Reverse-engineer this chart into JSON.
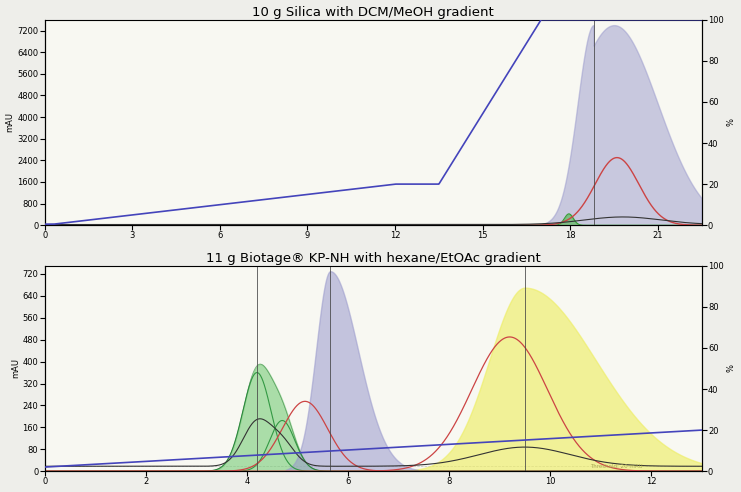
{
  "top_title": "10 g Silica with DCM/MeOH gradient",
  "bottom_title": "11 g Biotage® KP-NH with hexane/EtOAc gradient",
  "top": {
    "xlim": [
      0,
      22.5
    ],
    "ylim_left": [
      0,
      7600
    ],
    "ylim_right": [
      0,
      100
    ],
    "yticks_left": [
      0,
      800,
      1600,
      2400,
      3200,
      4000,
      4800,
      5600,
      6400,
      7200
    ],
    "xticks": [
      0,
      3,
      6,
      9,
      12,
      15,
      18,
      21
    ],
    "ylabel_left": "mAU",
    "ylabel_right": "%",
    "bg_color": "#f8f8f2"
  },
  "bottom": {
    "xlim": [
      0,
      13
    ],
    "ylim_left": [
      0,
      750
    ],
    "ylim_right": [
      0,
      100
    ],
    "yticks_left": [
      0,
      80,
      160,
      240,
      320,
      400,
      480,
      560,
      640,
      720
    ],
    "xticks": [
      0,
      2,
      4,
      6,
      8,
      10,
      12
    ],
    "ylabel_left": "mAU",
    "ylabel_right": "%",
    "bg_color": "#f8f8f2"
  },
  "colors": {
    "blue_line": "#4444bb",
    "green_fill": "#77cc77",
    "purple_fill": "#aaaadd",
    "yellow_fill": "#eeee88",
    "red_line": "#cc4444",
    "black_line": "#333333",
    "dashed_baseline": "#aaaaaa",
    "vline": "#444444"
  }
}
